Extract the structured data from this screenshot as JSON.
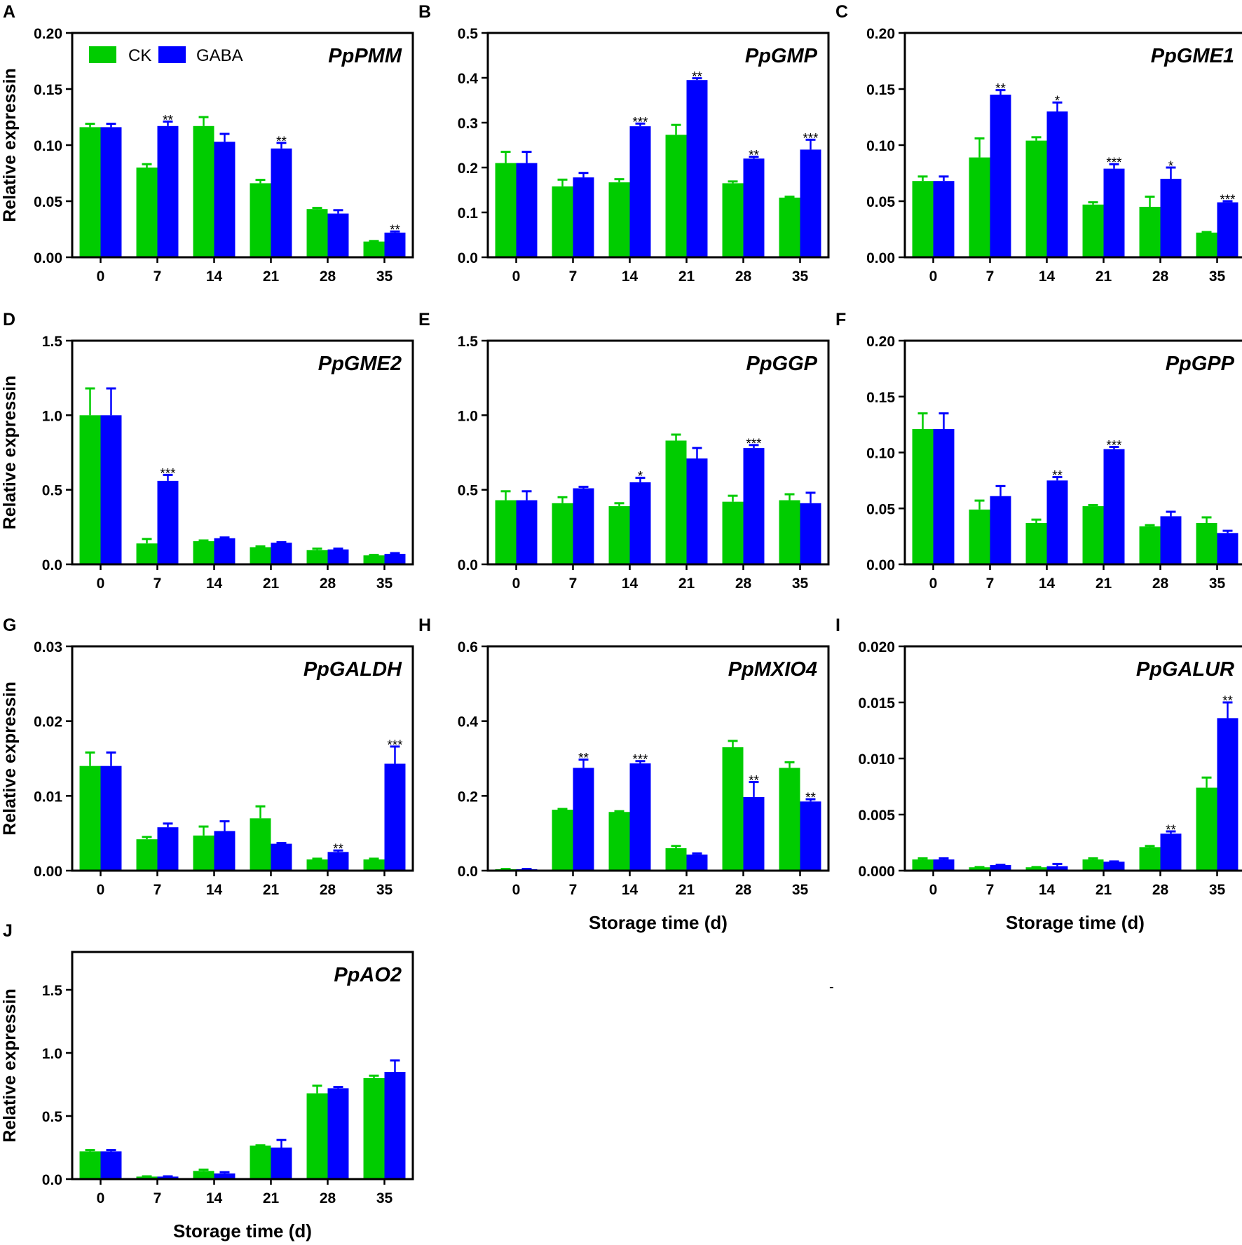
{
  "figure": {
    "legend": [
      {
        "name": "CK",
        "color": "#00cc00"
      },
      {
        "name": "GABA",
        "color": "#0000ff"
      }
    ],
    "stray_mark": "-"
  },
  "chart_data": [
    {
      "letter": "A",
      "title": "PpPMM",
      "type": "bar",
      "categories": [
        "0",
        "7",
        "14",
        "21",
        "28",
        "35"
      ],
      "ylabel": "Relative expressin",
      "xlabel": "",
      "ylim": [
        0,
        0.2
      ],
      "yticks": [
        "0.00",
        "0.05",
        "0.10",
        "0.15",
        "0.20"
      ],
      "series": [
        {
          "name": "CK",
          "values": [
            0.116,
            0.08,
            0.117,
            0.066,
            0.043,
            0.014
          ],
          "errors": [
            0.003,
            0.003,
            0.008,
            0.003,
            0.001,
            0.0005
          ]
        },
        {
          "name": "GABA",
          "values": [
            0.116,
            0.117,
            0.103,
            0.097,
            0.039,
            0.022
          ],
          "errors": [
            0.003,
            0.004,
            0.007,
            0.005,
            0.003,
            0.001
          ]
        }
      ],
      "significance": [
        "",
        "**",
        "",
        "**",
        "",
        "**"
      ]
    },
    {
      "letter": "B",
      "title": "PpGMP",
      "type": "bar",
      "categories": [
        "0",
        "7",
        "14",
        "21",
        "28",
        "35"
      ],
      "ylabel": "",
      "xlabel": "",
      "ylim": [
        0,
        0.5
      ],
      "yticks": [
        "0.0",
        "0.1",
        "0.2",
        "0.3",
        "0.4",
        "0.5"
      ],
      "series": [
        {
          "name": "CK",
          "values": [
            0.21,
            0.158,
            0.167,
            0.273,
            0.165,
            0.133
          ],
          "errors": [
            0.025,
            0.015,
            0.007,
            0.022,
            0.004,
            0.002
          ]
        },
        {
          "name": "GABA",
          "values": [
            0.21,
            0.178,
            0.292,
            0.395,
            0.22,
            0.24
          ],
          "errors": [
            0.025,
            0.01,
            0.006,
            0.004,
            0.004,
            0.022
          ]
        }
      ],
      "significance": [
        "",
        "",
        "***",
        "**",
        "**",
        "***"
      ]
    },
    {
      "letter": "C",
      "title": "PpGME1",
      "type": "bar",
      "categories": [
        "0",
        "7",
        "14",
        "21",
        "28",
        "35"
      ],
      "ylabel": "",
      "xlabel": "",
      "ylim": [
        0,
        0.2
      ],
      "yticks": [
        "0.00",
        "0.05",
        "0.10",
        "0.15",
        "0.20"
      ],
      "series": [
        {
          "name": "CK",
          "values": [
            0.068,
            0.089,
            0.104,
            0.047,
            0.045,
            0.022
          ],
          "errors": [
            0.004,
            0.017,
            0.003,
            0.002,
            0.009,
            0.0005
          ]
        },
        {
          "name": "GABA",
          "values": [
            0.068,
            0.145,
            0.13,
            0.079,
            0.07,
            0.049
          ],
          "errors": [
            0.004,
            0.004,
            0.008,
            0.004,
            0.01,
            0.001
          ]
        }
      ],
      "significance": [
        "",
        "**",
        "*",
        "***",
        "*",
        "***"
      ]
    },
    {
      "letter": "D",
      "title": "PpGME2",
      "type": "bar",
      "categories": [
        "0",
        "7",
        "14",
        "21",
        "28",
        "35"
      ],
      "ylabel": "Relative expressin",
      "xlabel": "",
      "ylim": [
        0,
        1.5
      ],
      "yticks": [
        "0.0",
        "0.5",
        "1.0",
        "1.5"
      ],
      "series": [
        {
          "name": "CK",
          "values": [
            1.0,
            0.14,
            0.155,
            0.115,
            0.095,
            0.06
          ],
          "errors": [
            0.18,
            0.03,
            0.005,
            0.005,
            0.01,
            0.003
          ]
        },
        {
          "name": "GABA",
          "values": [
            1.0,
            0.56,
            0.175,
            0.145,
            0.1,
            0.07
          ],
          "errors": [
            0.18,
            0.04,
            0.005,
            0.003,
            0.005,
            0.005
          ]
        }
      ],
      "significance": [
        "",
        "***",
        "",
        "",
        "",
        ""
      ]
    },
    {
      "letter": "E",
      "title": "PpGGP",
      "type": "bar",
      "categories": [
        "0",
        "7",
        "14",
        "21",
        "28",
        "35"
      ],
      "ylabel": "",
      "xlabel": "",
      "ylim": [
        0,
        1.5
      ],
      "yticks": [
        "0.0",
        "0.5",
        "1.0",
        "1.5"
      ],
      "series": [
        {
          "name": "CK",
          "values": [
            0.43,
            0.41,
            0.39,
            0.83,
            0.42,
            0.43
          ],
          "errors": [
            0.06,
            0.04,
            0.02,
            0.04,
            0.04,
            0.04
          ]
        },
        {
          "name": "GABA",
          "values": [
            0.43,
            0.51,
            0.55,
            0.71,
            0.78,
            0.41
          ],
          "errors": [
            0.06,
            0.01,
            0.03,
            0.07,
            0.02,
            0.07
          ]
        }
      ],
      "significance": [
        "",
        "",
        "*",
        "",
        "***",
        ""
      ]
    },
    {
      "letter": "F",
      "title": "PpGPP",
      "type": "bar",
      "categories": [
        "0",
        "7",
        "14",
        "21",
        "28",
        "35"
      ],
      "ylabel": "",
      "xlabel": "",
      "ylim": [
        0,
        0.2
      ],
      "yticks": [
        "0.00",
        "0.05",
        "0.10",
        "0.15",
        "0.20"
      ],
      "series": [
        {
          "name": "CK",
          "values": [
            0.121,
            0.049,
            0.037,
            0.052,
            0.034,
            0.037
          ],
          "errors": [
            0.014,
            0.008,
            0.003,
            0.001,
            0.001,
            0.005
          ]
        },
        {
          "name": "GABA",
          "values": [
            0.121,
            0.061,
            0.075,
            0.103,
            0.043,
            0.028
          ],
          "errors": [
            0.014,
            0.009,
            0.003,
            0.002,
            0.004,
            0.002
          ]
        }
      ],
      "significance": [
        "",
        "",
        "**",
        "***",
        "",
        ""
      ]
    },
    {
      "letter": "G",
      "title": "PpGALDH",
      "type": "bar",
      "categories": [
        "0",
        "7",
        "14",
        "21",
        "28",
        "35"
      ],
      "ylabel": "Relative expressin",
      "xlabel": "",
      "ylim": [
        0,
        0.03
      ],
      "yticks": [
        "0.00",
        "0.01",
        "0.02",
        "0.03"
      ],
      "series": [
        {
          "name": "CK",
          "values": [
            0.014,
            0.0042,
            0.0047,
            0.007,
            0.0015,
            0.0015
          ],
          "errors": [
            0.0018,
            0.0003,
            0.0012,
            0.0016,
            0.0001,
            0.0001
          ]
        },
        {
          "name": "GABA",
          "values": [
            0.014,
            0.0058,
            0.0053,
            0.0036,
            0.0025,
            0.0143
          ],
          "errors": [
            0.0018,
            0.0005,
            0.0013,
            0.0001,
            0.0002,
            0.0023
          ]
        }
      ],
      "significance": [
        "",
        "",
        "",
        "",
        "**",
        "***"
      ]
    },
    {
      "letter": "H",
      "title": "PpMXIO4",
      "type": "bar",
      "categories": [
        "0",
        "7",
        "14",
        "21",
        "28",
        "35"
      ],
      "ylabel": "",
      "xlabel": "Storage time (d)",
      "ylim": [
        0,
        0.6
      ],
      "yticks": [
        "0.0",
        "0.2",
        "0.4",
        "0.6"
      ],
      "series": [
        {
          "name": "CK",
          "values": [
            0.004,
            0.163,
            0.157,
            0.06,
            0.33,
            0.275
          ],
          "errors": [
            0.0005,
            0.002,
            0.002,
            0.006,
            0.017,
            0.015
          ]
        },
        {
          "name": "GABA",
          "values": [
            0.004,
            0.275,
            0.287,
            0.043,
            0.197,
            0.185
          ],
          "errors": [
            0.0005,
            0.022,
            0.006,
            0.003,
            0.04,
            0.006
          ]
        }
      ],
      "significance": [
        "",
        "**",
        "***",
        "",
        "**",
        "**"
      ]
    },
    {
      "letter": "I",
      "title": "PpGALUR",
      "type": "bar",
      "categories": [
        "0",
        "7",
        "14",
        "21",
        "28",
        "35"
      ],
      "ylabel": "",
      "xlabel": "Storage time (d)",
      "ylim": [
        0,
        0.02
      ],
      "yticks": [
        "0.000",
        "0.005",
        "0.010",
        "0.015",
        "0.020"
      ],
      "series": [
        {
          "name": "CK",
          "values": [
            0.001,
            0.0003,
            0.0003,
            0.001,
            0.0021,
            0.0074
          ],
          "errors": [
            0.0001,
            2e-05,
            2e-05,
            0.0001,
            0.0001,
            0.0009
          ]
        },
        {
          "name": "GABA",
          "values": [
            0.001,
            0.0005,
            0.0004,
            0.0008,
            0.0033,
            0.0136
          ],
          "errors": [
            0.0001,
            2e-05,
            0.0002,
            2e-05,
            0.0002,
            0.0014
          ]
        }
      ],
      "significance": [
        "",
        "",
        "",
        "",
        "**",
        "**"
      ]
    },
    {
      "letter": "J",
      "title": "PpAO2",
      "type": "bar",
      "categories": [
        "0",
        "7",
        "14",
        "21",
        "28",
        "35"
      ],
      "ylabel": "Relative expressin",
      "xlabel": "Storage time (d)",
      "ylim": [
        0,
        1.8
      ],
      "yticks": [
        "0.0",
        "0.5",
        "1.0",
        "1.5"
      ],
      "series": [
        {
          "name": "CK",
          "values": [
            0.22,
            0.02,
            0.065,
            0.265,
            0.68,
            0.8
          ],
          "errors": [
            0.01,
            0.002,
            0.01,
            0.003,
            0.06,
            0.02
          ]
        },
        {
          "name": "GABA",
          "values": [
            0.22,
            0.02,
            0.045,
            0.25,
            0.72,
            0.85
          ],
          "errors": [
            0.01,
            0.002,
            0.01,
            0.06,
            0.01,
            0.09
          ]
        }
      ],
      "significance": [
        "",
        "",
        "",
        "",
        "",
        ""
      ]
    }
  ]
}
